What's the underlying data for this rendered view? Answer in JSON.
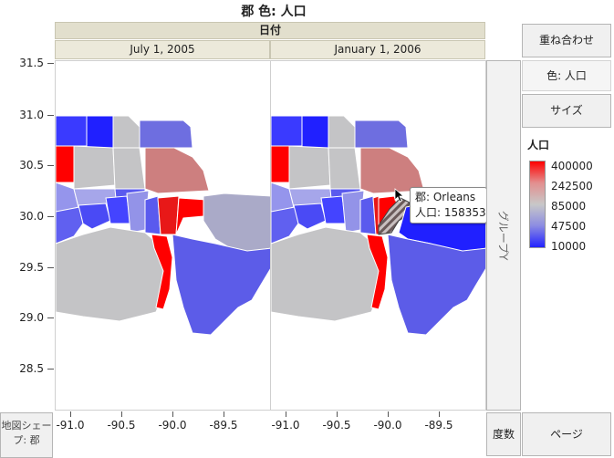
{
  "title": "郡 色: 人口",
  "header": {
    "group_x_label": "日付"
  },
  "panels": [
    {
      "label": "July 1, 2005"
    },
    {
      "label": "January 1, 2006"
    }
  ],
  "y_axis": {
    "ticks": [
      "31.5",
      "31.0",
      "30.5",
      "30.0",
      "29.5",
      "29.0",
      "28.5"
    ]
  },
  "x_axis": {
    "ticks": [
      "-91.0",
      "-90.5",
      "-90.0",
      "-89.5"
    ]
  },
  "sidebar": {
    "overlay_label": "重ね合わせ",
    "color_label": "色: 人口",
    "size_label": "サイズ"
  },
  "group_y_label": "グループY",
  "legend": {
    "title": "人口",
    "values": [
      "400000",
      "242500",
      "85000",
      "47500",
      "10000"
    ],
    "colors": [
      "#ff0000",
      "#e38f8f",
      "#c8c8c8",
      "#8c8ce2",
      "#2222ff"
    ]
  },
  "footer": {
    "shape_label": "地図シェープ: 郡",
    "freq_label": "度数",
    "page_label": "ページ"
  },
  "tooltip": {
    "line1": "郡: Orleans",
    "line2": "人口: 158353"
  }
}
